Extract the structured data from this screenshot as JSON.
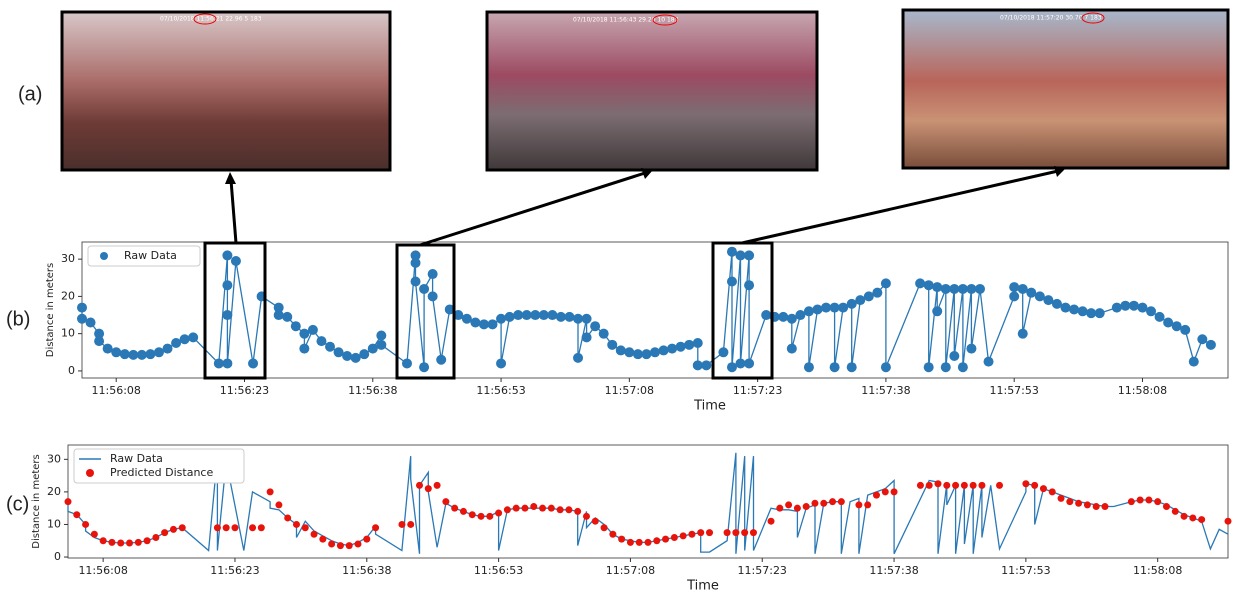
{
  "panel_labels": [
    "(a)",
    "(b)",
    "(c)"
  ],
  "photos": [
    {
      "caption": "07/10/2018 11:56:21   22.96   5   183"
    },
    {
      "caption": "07/10/2018 11:56:43   29.20   10   183"
    },
    {
      "caption": "07/10/2018 11:57:20   30.70   7   183"
    }
  ],
  "chart_data": [
    {
      "type": "line",
      "xlabel": "Time",
      "ylabel": "Distance in meters",
      "xlim": [
        "11:56:04",
        "11:58:18"
      ],
      "ylim": [
        -1.9,
        34.6
      ],
      "yticks": [
        0,
        10,
        20,
        30
      ],
      "xticks": [
        "11:56:08",
        "11:56:23",
        "11:56:38",
        "11:56:53",
        "11:57:08",
        "11:57:23",
        "11:57:38",
        "11:57:53",
        "11:58:08"
      ],
      "legend": "upper left",
      "series": [
        {
          "name": "Raw Data",
          "color": "#2a78b5",
          "line": true,
          "markers": true,
          "x": [
            "11:56:04",
            "11:56:04",
            "11:56:05",
            "11:56:06",
            "11:56:06",
            "11:56:07",
            "11:56:08",
            "11:56:09",
            "11:56:10",
            "11:56:11",
            "11:56:12",
            "11:56:13",
            "11:56:14",
            "11:56:15",
            "11:56:16",
            "11:56:17",
            "11:56:20",
            "11:56:21",
            "11:56:21",
            "11:56:21",
            "11:56:21",
            "11:56:22",
            "11:56:24",
            "11:56:25",
            "11:56:27",
            "11:56:27",
            "11:56:28",
            "11:56:29",
            "11:56:30",
            "11:56:30",
            "11:56:31",
            "11:56:32",
            "11:56:33",
            "11:56:34",
            "11:56:35",
            "11:56:36",
            "11:56:37",
            "11:56:38",
            "11:56:39",
            "11:56:39",
            "11:56:42",
            "11:56:43",
            "11:56:43",
            "11:56:43",
            "11:56:44",
            "11:56:44",
            "11:56:45",
            "11:56:45",
            "11:56:46",
            "11:56:47",
            "11:56:48",
            "11:56:49",
            "11:56:50",
            "11:56:51",
            "11:56:52",
            "11:56:53",
            "11:56:53",
            "11:56:54",
            "11:56:55",
            "11:56:56",
            "11:56:57",
            "11:56:58",
            "11:56:59",
            "11:57:00",
            "11:57:01",
            "11:57:02",
            "11:57:02",
            "11:57:03",
            "11:57:03",
            "11:57:04",
            "11:57:05",
            "11:57:06",
            "11:57:07",
            "11:57:08",
            "11:57:09",
            "11:57:10",
            "11:57:11",
            "11:57:12",
            "11:57:13",
            "11:57:14",
            "11:57:15",
            "11:57:16",
            "11:57:16",
            "11:57:17",
            "11:57:19",
            "11:57:20",
            "11:57:20",
            "11:57:20",
            "11:57:21",
            "11:57:21",
            "11:57:22",
            "11:57:22",
            "11:57:22",
            "11:57:24",
            "11:57:25",
            "11:57:26",
            "11:57:27",
            "11:57:27",
            "11:57:28",
            "11:57:29",
            "11:57:29",
            "11:57:30",
            "11:57:31",
            "11:57:32",
            "11:57:32",
            "11:57:33",
            "11:57:34",
            "11:57:34",
            "11:57:35",
            "11:57:36",
            "11:57:37",
            "11:57:38",
            "11:57:38",
            "11:57:42",
            "11:57:43",
            "11:57:43",
            "11:57:44",
            "11:57:44",
            "11:57:45",
            "11:57:45",
            "11:57:46",
            "11:57:46",
            "11:57:47",
            "11:57:47",
            "11:57:48",
            "11:57:48",
            "11:57:49",
            "11:57:50",
            "11:57:53",
            "11:57:53",
            "11:57:54",
            "11:57:54",
            "11:57:55",
            "11:57:56",
            "11:57:57",
            "11:57:58",
            "11:57:59",
            "11:58:00",
            "11:58:01",
            "11:58:02",
            "11:58:03",
            "11:58:05",
            "11:58:06",
            "11:58:07",
            "11:58:08",
            "11:58:09",
            "11:58:10",
            "11:58:11",
            "11:58:12",
            "11:58:13",
            "11:58:14",
            "11:58:15",
            "11:58:16"
          ],
          "values": [
            17,
            14,
            13,
            10,
            8,
            6,
            5,
            4.5,
            4.3,
            4.3,
            4.5,
            5,
            6,
            7.5,
            8.5,
            9,
            2,
            31,
            23,
            15,
            2,
            29.5,
            2,
            20,
            17,
            15,
            14.5,
            12,
            10,
            6,
            11,
            8,
            6.5,
            5,
            4,
            3.5,
            4.5,
            6,
            9.5,
            7,
            2,
            31,
            29,
            24,
            1,
            22,
            26,
            20,
            3,
            16.5,
            15,
            14,
            13,
            12.5,
            12.5,
            14,
            2,
            14.5,
            15,
            15,
            15,
            15,
            15,
            14.5,
            14.5,
            14,
            3.5,
            14,
            9,
            12,
            10,
            7,
            5.5,
            5,
            4.5,
            4.5,
            5,
            5.5,
            6,
            6.5,
            7,
            7.5,
            1.5,
            1.5,
            5,
            32,
            24,
            1,
            31,
            2,
            31,
            23,
            2,
            15,
            14.5,
            14.5,
            14,
            6,
            15,
            16,
            1,
            16.5,
            17,
            17,
            1,
            17,
            18,
            1,
            19,
            20,
            21,
            23.5,
            1,
            23.5,
            23,
            1,
            22.5,
            16,
            22,
            1,
            22,
            4,
            22,
            1,
            22,
            6,
            22,
            2.5,
            20,
            22.5,
            22,
            10,
            21,
            20,
            19,
            18,
            17,
            16.5,
            16,
            15.5,
            15.5,
            17,
            17.5,
            17.5,
            17,
            16,
            14.5,
            13,
            12,
            11,
            2.5,
            8.5,
            7
          ]
        }
      ]
    },
    {
      "type": "line",
      "xlabel": "Time",
      "ylabel": "Distance in meters",
      "xlim": [
        "11:56:04",
        "11:58:16"
      ],
      "ylim": [
        -0.3,
        34.4
      ],
      "yticks": [
        0,
        10,
        20,
        30
      ],
      "xticks": [
        "11:56:08",
        "11:56:23",
        "11:56:38",
        "11:56:53",
        "11:57:08",
        "11:57:23",
        "11:57:38",
        "11:57:53",
        "11:58:08"
      ],
      "legend": "upper left",
      "series": [
        {
          "name": "Raw Data",
          "color": "#2a78b5",
          "line": true,
          "markers": false,
          "x": [
            "11:56:04",
            "11:56:04",
            "11:56:05",
            "11:56:06",
            "11:56:06",
            "11:56:07",
            "11:56:08",
            "11:56:09",
            "11:56:10",
            "11:56:11",
            "11:56:12",
            "11:56:13",
            "11:56:14",
            "11:56:15",
            "11:56:16",
            "11:56:17",
            "11:56:20",
            "11:56:21",
            "11:56:21",
            "11:56:21",
            "11:56:21",
            "11:56:22",
            "11:56:24",
            "11:56:25",
            "11:56:27",
            "11:56:27",
            "11:56:28",
            "11:56:29",
            "11:56:30",
            "11:56:30",
            "11:56:31",
            "11:56:32",
            "11:56:33",
            "11:56:34",
            "11:56:35",
            "11:56:36",
            "11:56:37",
            "11:56:38",
            "11:56:39",
            "11:56:39",
            "11:56:42",
            "11:56:43",
            "11:56:43",
            "11:56:43",
            "11:56:44",
            "11:56:44",
            "11:56:45",
            "11:56:45",
            "11:56:46",
            "11:56:47",
            "11:56:48",
            "11:56:49",
            "11:56:50",
            "11:56:51",
            "11:56:52",
            "11:56:53",
            "11:56:53",
            "11:56:54",
            "11:56:55",
            "11:56:56",
            "11:56:57",
            "11:56:58",
            "11:56:59",
            "11:57:00",
            "11:57:01",
            "11:57:02",
            "11:57:02",
            "11:57:03",
            "11:57:03",
            "11:57:04",
            "11:57:05",
            "11:57:06",
            "11:57:07",
            "11:57:08",
            "11:57:09",
            "11:57:10",
            "11:57:11",
            "11:57:12",
            "11:57:13",
            "11:57:14",
            "11:57:15",
            "11:57:16",
            "11:57:16",
            "11:57:17",
            "11:57:19",
            "11:57:20",
            "11:57:20",
            "11:57:20",
            "11:57:21",
            "11:57:21",
            "11:57:22",
            "11:57:22",
            "11:57:22",
            "11:57:24",
            "11:57:25",
            "11:57:26",
            "11:57:27",
            "11:57:27",
            "11:57:28",
            "11:57:29",
            "11:57:29",
            "11:57:30",
            "11:57:31",
            "11:57:32",
            "11:57:32",
            "11:57:33",
            "11:57:34",
            "11:57:34",
            "11:57:35",
            "11:57:36",
            "11:57:37",
            "11:57:38",
            "11:57:38",
            "11:57:42",
            "11:57:43",
            "11:57:43",
            "11:57:44",
            "11:57:44",
            "11:57:45",
            "11:57:45",
            "11:57:46",
            "11:57:46",
            "11:57:47",
            "11:57:47",
            "11:57:48",
            "11:57:48",
            "11:57:49",
            "11:57:50",
            "11:57:53",
            "11:57:53",
            "11:57:54",
            "11:57:54",
            "11:57:55",
            "11:57:56",
            "11:57:57",
            "11:57:58",
            "11:57:59",
            "11:58:00",
            "11:58:01",
            "11:58:02",
            "11:58:03",
            "11:58:05",
            "11:58:06",
            "11:58:07",
            "11:58:08",
            "11:58:09",
            "11:58:10",
            "11:58:11",
            "11:58:12",
            "11:58:13",
            "11:58:14",
            "11:58:15",
            "11:58:16"
          ],
          "values": [
            17,
            14,
            13,
            10,
            8,
            6,
            5,
            4.5,
            4.3,
            4.3,
            4.5,
            5,
            6,
            7.5,
            8.5,
            9,
            2,
            31,
            23,
            15,
            2,
            29.5,
            2,
            20,
            17,
            15,
            14.5,
            12,
            10,
            6,
            11,
            8,
            6.5,
            5,
            4,
            3.5,
            4.5,
            6,
            9.5,
            7,
            2,
            31,
            29,
            24,
            1,
            22,
            26,
            20,
            3,
            16.5,
            15,
            14,
            13,
            12.5,
            12.5,
            14,
            2,
            14.5,
            15,
            15,
            15,
            15,
            15,
            14.5,
            14.5,
            14,
            3.5,
            14,
            9,
            12,
            10,
            7,
            5.5,
            5,
            4.5,
            4.5,
            5,
            5.5,
            6,
            6.5,
            7,
            7.5,
            1.5,
            1.5,
            5,
            32,
            24,
            1,
            31,
            2,
            31,
            23,
            2,
            15,
            14.5,
            14.5,
            14,
            6,
            15,
            16,
            1,
            16.5,
            17,
            17,
            1,
            17,
            18,
            1,
            19,
            20,
            21,
            23.5,
            1,
            23.5,
            23,
            1,
            22.5,
            16,
            22,
            1,
            22,
            4,
            22,
            1,
            22,
            6,
            22,
            2.5,
            20,
            22.5,
            22,
            10,
            21,
            20,
            19,
            18,
            17,
            16.5,
            16,
            15.5,
            15.5,
            17,
            17.5,
            17.5,
            17,
            16,
            14.5,
            13,
            12,
            11,
            2.5,
            8.5,
            7
          ]
        },
        {
          "name": "Predicted Distance",
          "color": "#e8140c",
          "line": false,
          "markers": true,
          "x": [
            "11:56:04",
            "11:56:05",
            "11:56:06",
            "11:56:07",
            "11:56:08",
            "11:56:09",
            "11:56:10",
            "11:56:11",
            "11:56:12",
            "11:56:13",
            "11:56:14",
            "11:56:15",
            "11:56:16",
            "11:56:17",
            "11:56:21",
            "11:56:22",
            "11:56:23",
            "11:56:25",
            "11:56:26",
            "11:56:27",
            "11:56:28",
            "11:56:29",
            "11:56:30",
            "11:56:31",
            "11:56:32",
            "11:56:33",
            "11:56:34",
            "11:56:35",
            "11:56:36",
            "11:56:37",
            "11:56:38",
            "11:56:39",
            "11:56:42",
            "11:56:43",
            "11:56:44",
            "11:56:45",
            "11:56:46",
            "11:56:47",
            "11:56:48",
            "11:56:49",
            "11:56:50",
            "11:56:51",
            "11:56:52",
            "11:56:53",
            "11:56:54",
            "11:56:55",
            "11:56:56",
            "11:56:57",
            "11:56:58",
            "11:56:59",
            "11:57:00",
            "11:57:01",
            "11:57:02",
            "11:57:03",
            "11:57:04",
            "11:57:05",
            "11:57:06",
            "11:57:07",
            "11:57:08",
            "11:57:09",
            "11:57:10",
            "11:57:11",
            "11:57:12",
            "11:57:13",
            "11:57:14",
            "11:57:15",
            "11:57:16",
            "11:57:17",
            "11:57:19",
            "11:57:20",
            "11:57:21",
            "11:57:22",
            "11:57:24",
            "11:57:25",
            "11:57:26",
            "11:57:27",
            "11:57:28",
            "11:57:29",
            "11:57:30",
            "11:57:31",
            "11:57:32",
            "11:57:34",
            "11:57:35",
            "11:57:36",
            "11:57:37",
            "11:57:38",
            "11:57:41",
            "11:57:42",
            "11:57:43",
            "11:57:44",
            "11:57:45",
            "11:57:46",
            "11:57:47",
            "11:57:48",
            "11:57:50",
            "11:57:53",
            "11:57:54",
            "11:57:55",
            "11:57:56",
            "11:57:57",
            "11:57:58",
            "11:57:59",
            "11:58:00",
            "11:58:01",
            "11:58:02",
            "11:58:05",
            "11:58:06",
            "11:58:07",
            "11:58:08",
            "11:58:09",
            "11:58:10",
            "11:58:11",
            "11:58:12",
            "11:58:13",
            "11:58:16"
          ],
          "values": [
            17,
            13,
            10,
            7,
            5,
            4.5,
            4.3,
            4.3,
            4.5,
            5,
            6,
            7.5,
            8.5,
            9,
            9,
            9,
            9,
            9,
            9,
            20,
            16,
            12,
            10,
            9,
            7,
            5.5,
            4,
            3.5,
            3.5,
            4,
            5.5,
            9,
            10,
            10,
            22,
            21,
            22,
            17,
            15,
            14,
            13,
            12.5,
            12.5,
            13.5,
            14.5,
            15,
            15,
            15.5,
            15,
            15,
            14.5,
            14.5,
            14,
            12.5,
            11,
            9,
            7,
            5.5,
            4.5,
            4.5,
            4.5,
            5,
            5.5,
            6,
            6.5,
            7,
            7.5,
            7.5,
            7.5,
            7.5,
            7.5,
            7.5,
            11,
            15,
            16,
            15,
            15.5,
            16.5,
            16.5,
            17,
            17,
            16,
            16,
            19,
            20,
            20,
            22,
            22,
            22.5,
            22,
            22,
            22,
            22,
            22,
            22,
            22.5,
            22,
            21,
            20,
            18,
            17,
            16.5,
            16,
            15.5,
            15.5,
            17,
            17.5,
            17.5,
            17,
            15.5,
            14,
            12.5,
            12,
            11.5,
            11
          ]
        }
      ]
    }
  ]
}
